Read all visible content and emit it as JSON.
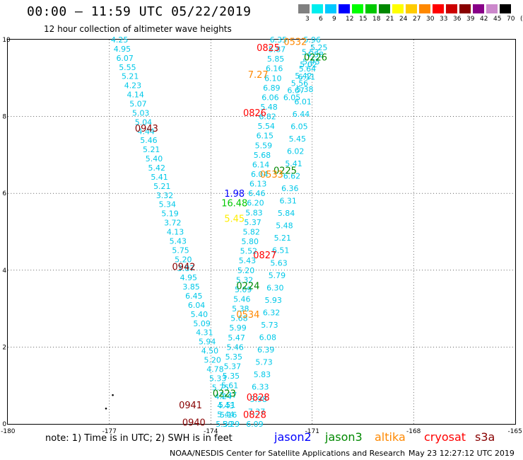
{
  "header": {
    "title": "00:00 – 11:59 UTC 05/22/2019",
    "subtitle": "12 hour collection of altimeter wave heights"
  },
  "color_scale": {
    "labels": [
      "3",
      "6",
      "9",
      "12",
      "15",
      "18",
      "21",
      "24",
      "27",
      "30",
      "33",
      "36",
      "39",
      "42",
      "45",
      "70",
      "(ft)"
    ],
    "colors": [
      "#808080",
      "#00eeee",
      "#00c8ff",
      "#0000ff",
      "#00ff00",
      "#00c800",
      "#008800",
      "#ffff00",
      "#ffcc00",
      "#ff8800",
      "#ff0000",
      "#cc0000",
      "#880000",
      "#880088",
      "#cc88cc",
      "#000000"
    ]
  },
  "axes": {
    "x_ticks": [
      "-180",
      "-177",
      "-174",
      "-171",
      "-168",
      "-165"
    ],
    "y_ticks": [
      "0",
      "2",
      "4",
      "6",
      "8",
      "10"
    ],
    "x_range": [
      -180,
      -165
    ],
    "y_range": [
      0,
      10
    ]
  },
  "tracks": [
    {
      "id": "track-west",
      "color": "#00c8e8",
      "start": [
        -176.7,
        10
      ],
      "end": [
        -173.4,
        0
      ],
      "values": [
        "4.25",
        "4.95",
        "6.07",
        "5.55",
        "5.21",
        "4.23",
        "4.14",
        "5.07",
        "5.03",
        "5.04",
        "4.44",
        "5.46",
        "5.21",
        "5.40",
        "5.42",
        "5.41",
        "5.21",
        "3.32",
        "5.34",
        "5.19",
        "3.72",
        "4.13",
        "5.43",
        "5.75",
        "5.20",
        "3.87",
        "4.95",
        "3.85",
        "6.45",
        "6.04",
        "5.40",
        "5.09",
        "4.31",
        "5.94",
        "4.50",
        "5.20",
        "4.78",
        "5.33",
        "5.75",
        "4.24",
        "4.43",
        "5.16",
        "5.29"
      ]
    },
    {
      "id": "track-mid",
      "color": "#00c8e8",
      "start": [
        -172.0,
        10
      ],
      "end": [
        -173.6,
        0
      ],
      "values": [
        "6.35",
        "5.87",
        "5.85",
        "6.16",
        "6.10",
        "6.89",
        "6.06",
        "5.48",
        "6.82",
        "5.54",
        "6.15",
        "5.59",
        "5.68",
        "6.14",
        "6.04",
        "6.13",
        "6.46",
        "6.20",
        "5.83",
        "5.37",
        "5.82",
        "5.80",
        "5.52",
        "5.43",
        "5.20",
        "5.32",
        "5.09",
        "5.46",
        "5.38",
        "5.68",
        "5.99",
        "5.47",
        "5.46",
        "5.35",
        "5.37",
        "5.35",
        "5.61",
        "5.37",
        "5.51",
        "5.44",
        "5.39"
      ]
    },
    {
      "id": "track-east",
      "color": "#00c8e8",
      "start": [
        -171.0,
        10
      ],
      "end": [
        -172.7,
        0
      ],
      "values": [
        "5.96",
        "5.53",
        "5.02",
        "6.11",
        "5.38",
        "6.01",
        "6.44",
        "6.05",
        "5.45",
        "6.02",
        "5.41",
        "6.62",
        "6.36",
        "6.31",
        "5.84",
        "5.48",
        "5.21",
        "6.51",
        "5.63",
        "5.79",
        "6.30",
        "5.93",
        "6.32",
        "5.73",
        "6.08",
        "6.39",
        "5.73",
        "5.83",
        "6.33",
        "5.98",
        "7.37",
        "6.09"
      ]
    },
    {
      "id": "track-far-east",
      "color": "#00c8e8",
      "start": [
        -170.8,
        9.8
      ],
      "end": [
        -171.6,
        8.5
      ],
      "values": [
        "5.25",
        "4.58",
        "5.95",
        "5.64",
        "5.42",
        "5.56",
        "6.67",
        "6.05"
      ]
    }
  ],
  "pass_labels": [
    {
      "text": "0943",
      "lon": -175.9,
      "lat": 7.7,
      "color": "#880000"
    },
    {
      "text": "0942",
      "lon": -174.8,
      "lat": 4.1,
      "color": "#880000"
    },
    {
      "text": "0941",
      "lon": -174.6,
      "lat": 0.5,
      "color": "#880000"
    },
    {
      "text": "0940",
      "lon": -174.5,
      "lat": 0.05,
      "color": "#880000"
    },
    {
      "text": "0825",
      "lon": -172.3,
      "lat": 9.8,
      "color": "#ff0000"
    },
    {
      "text": "0826",
      "lon": -172.7,
      "lat": 8.1,
      "color": "#ff0000"
    },
    {
      "text": "0827",
      "lon": -172.4,
      "lat": 4.4,
      "color": "#ff0000"
    },
    {
      "text": "0828",
      "lon": -172.6,
      "lat": 0.7,
      "color": "#ff0000"
    },
    {
      "text": "0828",
      "lon": -172.7,
      "lat": 0.25,
      "color": "#ff0000"
    },
    {
      "text": "0226",
      "lon": -170.9,
      "lat": 9.55,
      "color": "#008800"
    },
    {
      "text": "0225",
      "lon": -171.8,
      "lat": 6.6,
      "color": "#008800"
    },
    {
      "text": "0224",
      "lon": -172.9,
      "lat": 3.6,
      "color": "#008800"
    },
    {
      "text": "0223",
      "lon": -173.6,
      "lat": 0.8,
      "color": "#008800"
    },
    {
      "text": "0532",
      "lon": -171.5,
      "lat": 9.95,
      "color": "#ff8800"
    },
    {
      "text": "0533",
      "lon": -172.2,
      "lat": 6.5,
      "color": "#ff8800"
    },
    {
      "text": "0534",
      "lon": -172.9,
      "lat": 2.85,
      "color": "#ff8800"
    },
    {
      "text": "7.27",
      "lon": -172.6,
      "lat": 9.1,
      "color": "#ff8800"
    },
    {
      "text": "1.98",
      "lon": -173.3,
      "lat": 6.0,
      "color": "#0000ff"
    },
    {
      "text": "16.48",
      "lon": -173.3,
      "lat": 5.75,
      "color": "#00c800"
    },
    {
      "text": "5.45",
      "lon": -173.3,
      "lat": 5.35,
      "color": "#ffee00"
    }
  ],
  "dots": [
    {
      "lon": -176.9,
      "lat": 0.75
    },
    {
      "lon": -177.1,
      "lat": 0.4
    }
  ],
  "footer": {
    "note": "note:  1) Time is in UTC;  2) SWH is in feet",
    "legend": [
      {
        "label": "jason2",
        "color": "#0000ff"
      },
      {
        "label": "jason3",
        "color": "#008800"
      },
      {
        "label": "altika",
        "color": "#ff8800"
      },
      {
        "label": "cryosat",
        "color": "#ff0000"
      },
      {
        "label": "s3a",
        "color": "#880000"
      }
    ],
    "credit": "NOAA/NESDIS Center for Satellite Applications and Research",
    "timestamp": "May 23 12:27:12 UTC 2019"
  }
}
